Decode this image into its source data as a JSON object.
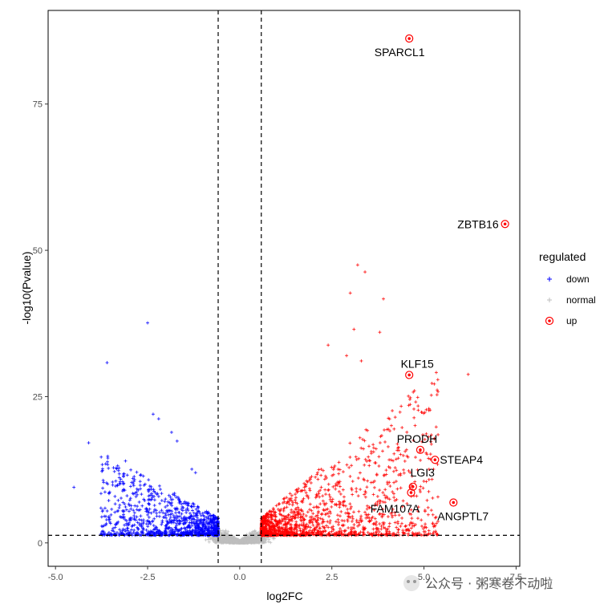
{
  "chart_data": {
    "type": "scatter",
    "title": "",
    "xlabel": "log2FC",
    "ylabel": "-log10(Pvalue)",
    "xlim": [
      -5.2,
      7.6
    ],
    "ylim": [
      -4,
      91
    ],
    "x_ticks": [
      -5.0,
      -2.5,
      0.0,
      2.5,
      5.0,
      7.5
    ],
    "x_tick_labels": [
      "-5.0",
      "-2.5",
      "0.0",
      "2.5",
      "5.0",
      "7.5"
    ],
    "y_ticks": [
      0,
      25,
      50,
      75
    ],
    "y_tick_labels": [
      "0",
      "25",
      "50",
      "75"
    ],
    "vlines": [
      -0.585,
      0.585
    ],
    "hline": 1.3,
    "grid": false,
    "legend": {
      "title": "regulated",
      "position": "right",
      "entries": [
        {
          "label": "down",
          "color": "#0000ff"
        },
        {
          "label": "normal",
          "color": "#bebebe"
        },
        {
          "label": "up",
          "color": "#ff0000"
        }
      ]
    },
    "labeled_genes": [
      {
        "name": "SPARCL1",
        "x": 4.6,
        "y": 86.2
      },
      {
        "name": "ZBTB16",
        "x": 7.2,
        "y": 54.5
      },
      {
        "name": "KLF15",
        "x": 4.6,
        "y": 28.7
      },
      {
        "name": "PRODH",
        "x": 4.9,
        "y": 15.9
      },
      {
        "name": "STEAP4",
        "x": 5.3,
        "y": 14.2
      },
      {
        "name": "LGI3",
        "x": 4.7,
        "y": 9.6
      },
      {
        "name": "FAM107A",
        "x": 4.65,
        "y": 8.6
      },
      {
        "name": "ANGPTL7",
        "x": 5.8,
        "y": 6.9
      }
    ],
    "scatter_points": {
      "down": [
        [
          -2.5,
          37.6
        ],
        [
          -3.6,
          30.8
        ],
        [
          -4.1,
          17.1
        ],
        [
          -2.35,
          22.0
        ],
        [
          -2.2,
          21.2
        ],
        [
          -1.85,
          18.9
        ],
        [
          -1.7,
          17.4
        ],
        [
          -4.5,
          9.5
        ],
        [
          -3.1,
          14.0
        ],
        [
          -3.4,
          12.2
        ],
        [
          -2.9,
          11.0
        ],
        [
          -1.3,
          12.6
        ],
        [
          -1.2,
          12.0
        ]
      ],
      "up": [
        [
          3.2,
          47.5
        ],
        [
          3.4,
          46.3
        ],
        [
          3.0,
          42.7
        ],
        [
          3.9,
          41.7
        ],
        [
          3.8,
          36.0
        ],
        [
          3.1,
          36.5
        ],
        [
          2.9,
          32.0
        ],
        [
          2.4,
          33.8
        ],
        [
          6.2,
          28.8
        ],
        [
          3.3,
          31.1
        ]
      ]
    }
  },
  "watermark": "公众号 · 粥寒卷不动啦"
}
